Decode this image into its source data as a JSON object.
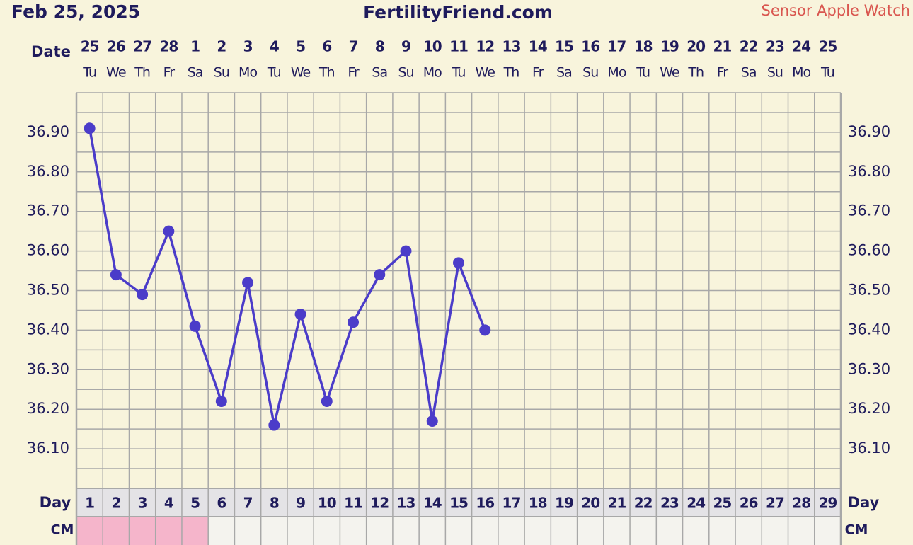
{
  "header": {
    "date": "Feb 25, 2025",
    "site": "FertilityFriend.com",
    "source": "Sensor Apple Watch"
  },
  "chart_data": {
    "type": "line",
    "date_label": "Date",
    "categories": [
      "25",
      "26",
      "27",
      "28",
      "1",
      "2",
      "3",
      "4",
      "5",
      "6",
      "7",
      "8",
      "9",
      "10",
      "11",
      "12",
      "13",
      "14",
      "15",
      "16",
      "17",
      "18",
      "19",
      "20",
      "21",
      "22",
      "23",
      "24",
      "25"
    ],
    "weekdays": [
      "Tu",
      "We",
      "Th",
      "Fr",
      "Sa",
      "Su",
      "Mo",
      "Tu",
      "We",
      "Th",
      "Fr",
      "Sa",
      "Su",
      "Mo",
      "Tu",
      "We",
      "Th",
      "Fr",
      "Sa",
      "Su",
      "Mo",
      "Tu",
      "We",
      "Th",
      "Fr",
      "Sa",
      "Su",
      "Mo",
      "Tu"
    ],
    "values": [
      36.91,
      36.54,
      36.49,
      36.65,
      36.41,
      36.22,
      36.52,
      36.16,
      36.44,
      36.22,
      36.42,
      36.54,
      36.6,
      36.17,
      36.57,
      36.4,
      null,
      null,
      null,
      null,
      null,
      null,
      null,
      null,
      null,
      null,
      null,
      null,
      null
    ],
    "color": "#4b3cc9",
    "ylim": [
      36.0,
      37.0
    ],
    "yticks": [
      {
        "value": 36.1,
        "label": "36.10"
      },
      {
        "value": 36.2,
        "label": "36.20"
      },
      {
        "value": 36.3,
        "label": "36.30"
      },
      {
        "value": 36.4,
        "label": "36.40"
      },
      {
        "value": 36.5,
        "label": "36.50"
      },
      {
        "value": 36.6,
        "label": "36.60"
      },
      {
        "value": 36.7,
        "label": "36.70"
      },
      {
        "value": 36.8,
        "label": "36.80"
      },
      {
        "value": 36.9,
        "label": "36.90"
      }
    ],
    "grid": true,
    "day_label": "Day",
    "days": [
      1,
      2,
      3,
      4,
      5,
      6,
      7,
      8,
      9,
      10,
      11,
      12,
      13,
      14,
      15,
      16,
      17,
      18,
      19,
      20,
      21,
      22,
      23,
      24,
      25,
      26,
      27,
      28,
      29
    ],
    "cm": {
      "label": "CM",
      "marked_days": [
        1,
        2,
        3,
        4,
        5
      ],
      "color": "#f5b5cb"
    }
  }
}
